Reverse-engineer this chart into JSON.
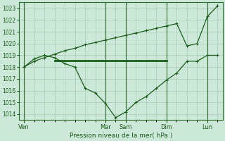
{
  "xlabel": "Pression niveau de la mer( hPa )",
  "ylim": [
    1013.5,
    1023.5
  ],
  "yticks": [
    1014,
    1015,
    1016,
    1017,
    1018,
    1019,
    1020,
    1021,
    1022,
    1023
  ],
  "bg_color": "#cce8d8",
  "grid_color": "#aaccb8",
  "line_color": "#1a5c1a",
  "days": [
    "Ven",
    "Mar",
    "Sam",
    "Dim",
    "Lun"
  ],
  "day_x": [
    0,
    8,
    10,
    14,
    18
  ],
  "xlim": [
    -0.5,
    19.5
  ],
  "upper_x": [
    0,
    1,
    2,
    3,
    4,
    5,
    6,
    7,
    8,
    9,
    10,
    11,
    12,
    13,
    14,
    15,
    16,
    17,
    18,
    19
  ],
  "upper_y": [
    1018.0,
    1018.5,
    1018.8,
    1019.1,
    1019.4,
    1019.6,
    1019.9,
    1020.1,
    1020.3,
    1020.5,
    1020.7,
    1020.9,
    1021.1,
    1021.3,
    1021.5,
    1021.7,
    1019.8,
    1020.0,
    1022.3,
    1023.2
  ],
  "lower_x": [
    0,
    1,
    2,
    3,
    4,
    5,
    6,
    7,
    8,
    9,
    10,
    11,
    12,
    13,
    14,
    15,
    16,
    17,
    18,
    19
  ],
  "lower_y": [
    1018.0,
    1018.7,
    1019.0,
    1018.8,
    1018.3,
    1018.0,
    1016.2,
    1015.8,
    1014.9,
    1013.7,
    1014.2,
    1015.0,
    1015.5,
    1016.2,
    1016.9,
    1017.5,
    1018.5,
    1018.5,
    1019.0,
    1019.0
  ],
  "flat_x": [
    3,
    4,
    5,
    6,
    7,
    8,
    9,
    10,
    11,
    12,
    13,
    14
  ],
  "flat_y": [
    1018.55,
    1018.55,
    1018.55,
    1018.55,
    1018.55,
    1018.55,
    1018.55,
    1018.55,
    1018.55,
    1018.55,
    1018.55,
    1018.55
  ]
}
